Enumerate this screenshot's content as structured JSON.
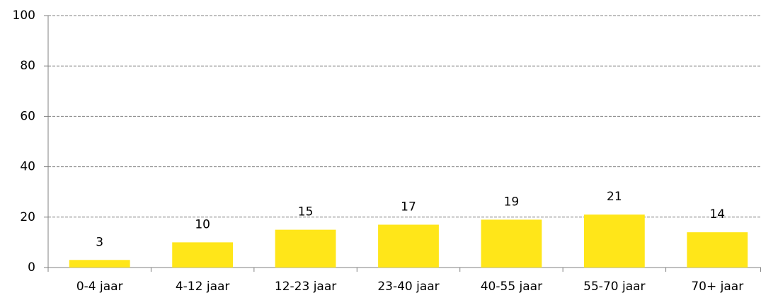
{
  "chart_data": {
    "type": "bar",
    "categories": [
      "0-4 jaar",
      "4-12 jaar",
      "12-23 jaar",
      "23-40 jaar",
      "40-55 jaar",
      "55-70 jaar",
      "70+ jaar"
    ],
    "values": [
      3,
      10,
      15,
      17,
      19,
      21,
      14
    ],
    "color": "#ffe619",
    "ylim": [
      0,
      100
    ],
    "yticks": [
      0,
      20,
      40,
      60,
      80,
      100
    ],
    "grid": true
  }
}
